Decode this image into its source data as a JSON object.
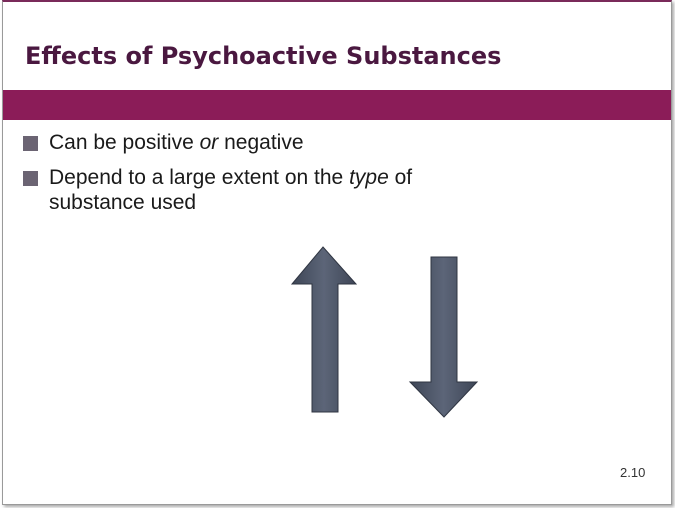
{
  "slide": {
    "title": "Effects of Psychoactive Substances",
    "bullets": [
      {
        "parts": [
          {
            "text": "Can be positive ",
            "italic": false
          },
          {
            "text": "or",
            "italic": true
          },
          {
            "text": " negative",
            "italic": false
          }
        ]
      },
      {
        "parts": [
          {
            "text": "Depend to a large extent on the ",
            "italic": false
          },
          {
            "text": "type",
            "italic": true
          },
          {
            "text": " of substance used",
            "italic": false
          }
        ]
      }
    ],
    "page_number": "2.10"
  }
}
